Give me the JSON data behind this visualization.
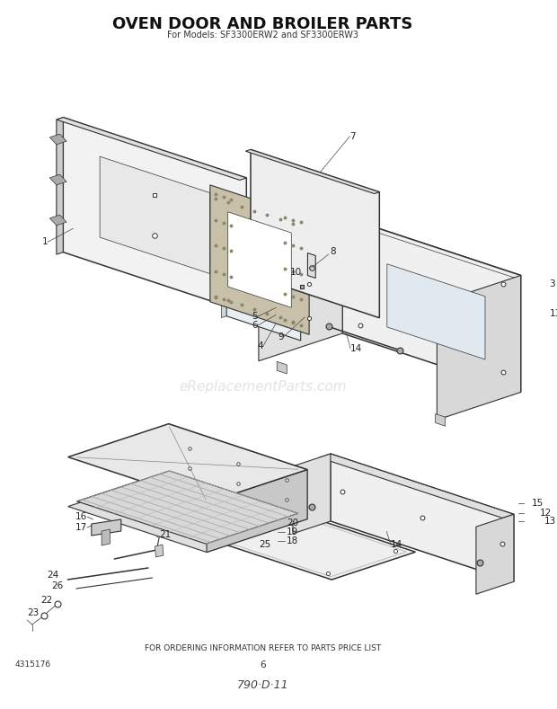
{
  "title": "OVEN DOOR AND BROILER PARTS",
  "subtitle": "For Models: SF3300ERW2 and SF3300ERW3",
  "footer_text": "FOR ORDERING INFORMATION REFER TO PARTS PRICE LIST",
  "footer_num": "6",
  "footer_code": "790·D·11",
  "part_num_left": "4315176",
  "bg_color": "#ffffff",
  "line_color": "#333333",
  "label_color": "#222222",
  "watermark_text": "eReplacementParts.com",
  "watermark_color": "#c8c8c8",
  "title_fontsize": 13,
  "subtitle_fontsize": 7,
  "label_fontsize": 7.5,
  "footer_fontsize": 6.5
}
